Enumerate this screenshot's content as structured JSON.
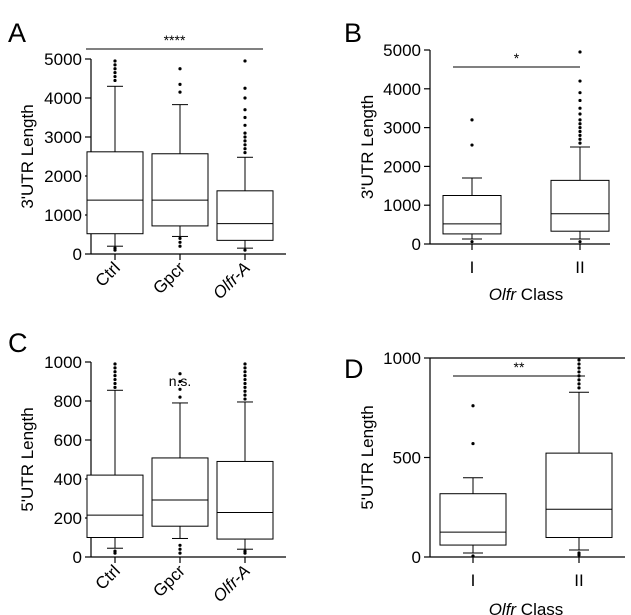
{
  "chart_data": [
    {
      "panel": "A",
      "type": "box",
      "ylabel": "3'UTR Length",
      "ylim": [
        0,
        5000
      ],
      "yticks": [
        0,
        1000,
        2000,
        3000,
        4000,
        5000
      ],
      "categories": [
        "Ctrl",
        "Gpcr",
        "Olfr-A"
      ],
      "boxes": [
        {
          "low": 200,
          "q1": 520,
          "median": 1380,
          "q3": 2620,
          "high": 4300,
          "outliers_high": [
            4450,
            4550,
            4650,
            4750,
            4850,
            4950
          ],
          "outliers_low": [
            100,
            150
          ]
        },
        {
          "low": 450,
          "q1": 720,
          "median": 1380,
          "q3": 2570,
          "high": 3830,
          "outliers_high": [
            4150,
            4350,
            4750
          ],
          "outliers_low": [
            200,
            300,
            400
          ]
        },
        {
          "low": 150,
          "q1": 350,
          "median": 780,
          "q3": 1620,
          "high": 2480,
          "outliers_high": [
            2600,
            2700,
            2800,
            2900,
            3000,
            3100,
            3300,
            3500,
            3700,
            4000,
            4250,
            4950
          ],
          "outliers_low": [
            100
          ]
        }
      ],
      "significance": {
        "label": "****",
        "from": 0,
        "to": 2
      }
    },
    {
      "panel": "B",
      "type": "box",
      "ylabel": "3'UTR Length",
      "xlabel_italic": "Olfr",
      "xlabel": "Class",
      "ylim": [
        0,
        5000
      ],
      "yticks": [
        0,
        1000,
        2000,
        3000,
        4000,
        5000
      ],
      "categories": [
        "I",
        "II"
      ],
      "boxes": [
        {
          "low": 130,
          "q1": 260,
          "median": 520,
          "q3": 1250,
          "high": 1700,
          "outliers_high": [
            2550,
            3200
          ],
          "outliers_low": [
            60
          ]
        },
        {
          "low": 130,
          "q1": 330,
          "median": 780,
          "q3": 1640,
          "high": 2500,
          "outliers_high": [
            2600,
            2700,
            2800,
            2900,
            3000,
            3100,
            3200,
            3350,
            3500,
            3700,
            3900,
            4200,
            4950
          ],
          "outliers_low": [
            60
          ]
        }
      ],
      "significance": {
        "label": "*",
        "from": 0,
        "to": 1
      }
    },
    {
      "panel": "C",
      "type": "box",
      "ylabel": "5'UTR Length",
      "ylim": [
        0,
        1000
      ],
      "yticks": [
        0,
        200,
        400,
        600,
        800,
        1000
      ],
      "categories": [
        "Ctrl",
        "Gpcr",
        "Olfr-A"
      ],
      "boxes": [
        {
          "low": 45,
          "q1": 100,
          "median": 215,
          "q3": 420,
          "high": 855,
          "outliers_high": [
            870,
            890,
            910,
            930,
            950,
            970,
            990
          ],
          "outliers_low": [
            20,
            30
          ]
        },
        {
          "low": 95,
          "q1": 158,
          "median": 292,
          "q3": 508,
          "high": 790,
          "outliers_high": [
            820,
            860,
            900,
            940
          ],
          "outliers_low": [
            20,
            40,
            60
          ]
        },
        {
          "low": 40,
          "q1": 92,
          "median": 228,
          "q3": 490,
          "high": 795,
          "outliers_high": [
            810,
            830,
            850,
            870,
            890,
            910,
            930,
            950,
            970,
            990
          ],
          "outliers_low": [
            20,
            30
          ]
        }
      ],
      "significance": {
        "label": "n.s.",
        "from": 1,
        "to": 1
      }
    },
    {
      "panel": "D",
      "type": "box",
      "ylabel": "5'UTR Length",
      "xlabel_italic": "Olfr",
      "xlabel": "Class",
      "ylim": [
        0,
        1000
      ],
      "yticks": [
        0,
        500,
        1000
      ],
      "categories": [
        "I",
        "II"
      ],
      "boxes": [
        {
          "low": 20,
          "q1": 60,
          "median": 125,
          "q3": 318,
          "high": 398,
          "outliers_high": [
            570,
            760
          ],
          "outliers_low": [
            5
          ]
        },
        {
          "low": 35,
          "q1": 98,
          "median": 240,
          "q3": 522,
          "high": 828,
          "outliers_high": [
            850,
            870,
            890,
            910,
            930,
            950,
            970,
            990
          ],
          "outliers_low": [
            10,
            20
          ]
        }
      ],
      "significance": {
        "label": "**",
        "from": 0,
        "to": 1
      }
    }
  ]
}
